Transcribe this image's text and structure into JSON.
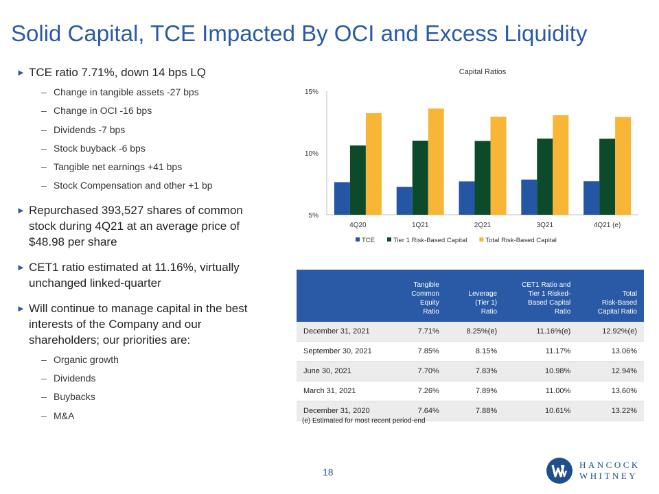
{
  "title": "Solid Capital, TCE Impacted By OCI and Excess Liquidity",
  "bullets": [
    {
      "text": "TCE ratio 7.71%, down 14 bps LQ",
      "sub": [
        "Change in tangible assets -27 bps",
        "Change in OCI -16 bps",
        "Dividends -7 bps",
        "Stock buyback -6 bps",
        "Tangible net earnings +41 bps",
        "Stock Compensation and other +1 bp"
      ]
    },
    {
      "text": "Repurchased 393,527 shares of common stock during 4Q21 at an average price of $48.98 per share",
      "sub": []
    },
    {
      "text": "CET1 ratio estimated at 11.16%, virtually unchanged linked-quarter",
      "sub": []
    },
    {
      "text": "Will continue to manage capital in the best interests of the Company and our shareholders; our priorities are:",
      "sub": [
        "Organic growth",
        "Dividends",
        "Buybacks",
        "M&A"
      ]
    }
  ],
  "chart_data": {
    "type": "bar",
    "title": "Capital Ratios",
    "categories": [
      "4Q20",
      "1Q21",
      "2Q21",
      "3Q21",
      "4Q21 (e)"
    ],
    "series": [
      {
        "name": "TCE",
        "color": "#2456a4",
        "values": [
          7.64,
          7.26,
          7.7,
          7.85,
          7.71
        ]
      },
      {
        "name": "Tier 1 Risk-Based Capital",
        "color": "#0c4a2a",
        "values": [
          10.61,
          11.0,
          10.98,
          11.17,
          11.16
        ]
      },
      {
        "name": "Total Risk-Based Capital",
        "color": "#f7b635",
        "values": [
          13.22,
          13.6,
          12.94,
          13.06,
          12.92
        ]
      }
    ],
    "ylim": [
      5,
      15
    ],
    "yticks": [
      "5%",
      "10%",
      "15%"
    ],
    "ytick_values": [
      5,
      10,
      15
    ],
    "legend_position": "bottom"
  },
  "table": {
    "headers": [
      "",
      "Tangible Common Equity Ratio",
      "Leverage (Tier 1) Ratio",
      "CET1 Ratio and Tier 1 Risked-Based Capital Ratio",
      "Total Risk-Based Capital Ratio"
    ],
    "header_lines": [
      [],
      [
        "Tangible",
        "Common",
        "Equity",
        "Ratio"
      ],
      [
        "Leverage",
        "(Tier 1)",
        "Ratio"
      ],
      [
        "CET1 Ratio and",
        "Tier 1 Risked-",
        "Based Capital",
        "Ratio"
      ],
      [
        "Total",
        "Risk-Based",
        "Capital Ratio"
      ]
    ],
    "rows": [
      [
        "December 31, 2021",
        "7.71%",
        "8.25%(e)",
        "11.16%(e)",
        "12.92%(e)"
      ],
      [
        "September 30, 2021",
        "7.85%",
        "8.15%",
        "11.17%",
        "13.06%"
      ],
      [
        "June 30, 2021",
        "7.70%",
        "7.83%",
        "10.98%",
        "12.94%"
      ],
      [
        "March 31, 2021",
        "7.26%",
        "7.89%",
        "11.00%",
        "13.60%"
      ],
      [
        "December 31, 2020",
        "7.64%",
        "7.88%",
        "10.61%",
        "13.22%"
      ]
    ]
  },
  "footnote": "(e) Estimated for most recent period-end",
  "page_number": "18",
  "logo": {
    "line1": "HANCOCK",
    "line2": "WHITNEY",
    "color": "#1f4e8c"
  }
}
